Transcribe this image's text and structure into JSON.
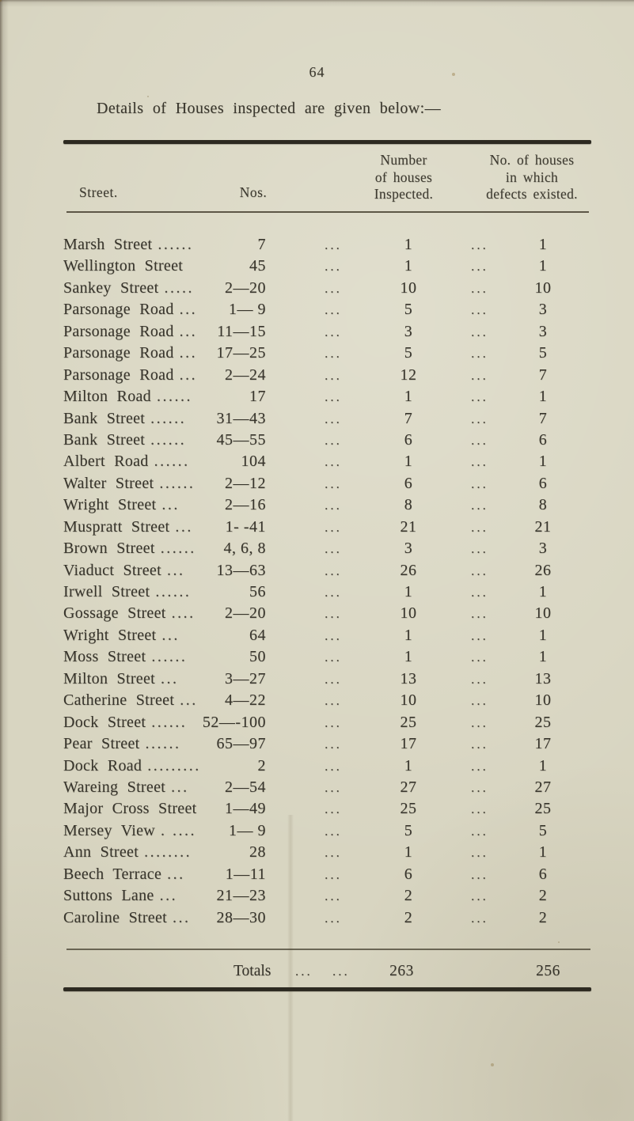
{
  "page": {
    "number": "64",
    "intro": "Details of Houses inspected are given below:—"
  },
  "table": {
    "headers": {
      "street": "Street.",
      "nos": "Nos.",
      "inspected_lines": [
        "Number",
        "of houses",
        "Inspected."
      ],
      "defects_lines": [
        "No. of houses",
        "in which",
        "defects existed."
      ]
    },
    "sep": "...",
    "rows": [
      {
        "street": "Marsh Street",
        "leader": "......",
        "nos": "7",
        "inspected": "1",
        "defects": "1"
      },
      {
        "street": "Wellington Street",
        "leader": "",
        "nos": "45",
        "inspected": "1",
        "defects": "1"
      },
      {
        "street": "Sankey Street",
        "leader": ".....",
        "nos": "2—20",
        "inspected": "10",
        "defects": "10"
      },
      {
        "street": "Parsonage Road",
        "leader": "...",
        "nos": "1— 9",
        "inspected": "5",
        "defects": "3"
      },
      {
        "street": "Parsonage Road",
        "leader": "...",
        "nos": "11—15",
        "inspected": "3",
        "defects": "3"
      },
      {
        "street": "Parsonage Road",
        "leader": "...",
        "nos": "17—25",
        "inspected": "5",
        "defects": "5"
      },
      {
        "street": "Parsonage Road",
        "leader": "...",
        "nos": "2—24",
        "inspected": "12",
        "defects": "7"
      },
      {
        "street": "Milton Road",
        "leader": "......",
        "nos": "17",
        "inspected": "1",
        "defects": "1"
      },
      {
        "street": "Bank Street",
        "leader": "......",
        "nos": "31—43",
        "inspected": "7",
        "defects": "7"
      },
      {
        "street": "Bank Street",
        "leader": "......",
        "nos": "45—55",
        "inspected": "6",
        "defects": "6"
      },
      {
        "street": "Albert Road",
        "leader": "......",
        "nos": "104",
        "inspected": "1",
        "defects": "1"
      },
      {
        "street": "Walter Street",
        "leader": "......",
        "nos": "2—12",
        "inspected": "6",
        "defects": "6"
      },
      {
        "street": "Wright Street",
        "leader": "...",
        "nos": "2—16",
        "inspected": "8",
        "defects": "8"
      },
      {
        "street": "Muspratt Street",
        "leader": "...",
        "nos": "1- -41",
        "inspected": "21",
        "defects": "21"
      },
      {
        "street": "Brown Street",
        "leader": "......",
        "nos": "4, 6, 8",
        "inspected": "3",
        "defects": "3"
      },
      {
        "street": "Viaduct Street",
        "leader": "...",
        "nos": "13—63",
        "inspected": "26",
        "defects": "26"
      },
      {
        "street": "Irwell Street",
        "leader": "......",
        "nos": "56",
        "inspected": "1",
        "defects": "1"
      },
      {
        "street": "Gossage Street",
        "leader": "....",
        "nos": "2—20",
        "inspected": "10",
        "defects": "10"
      },
      {
        "street": "Wright Street",
        "leader": "...",
        "nos": "64",
        "inspected": "1",
        "defects": "1"
      },
      {
        "street": "Moss Street",
        "leader": "......",
        "nos": "50",
        "inspected": "1",
        "defects": "1"
      },
      {
        "street": "Milton Street",
        "leader": "...",
        "nos": "3—27",
        "inspected": "13",
        "defects": "13"
      },
      {
        "street": "Catherine Street",
        "leader": "...",
        "nos": "4—22",
        "inspected": "10",
        "defects": "10"
      },
      {
        "street": "Dock Street",
        "leader": "......",
        "nos": "52—-100",
        "inspected": "25",
        "defects": "25"
      },
      {
        "street": "Pear Street",
        "leader": "......",
        "nos": "65—97",
        "inspected": "17",
        "defects": "17"
      },
      {
        "street": "Dock Road",
        "leader": ".........",
        "nos": "2",
        "inspected": "1",
        "defects": "1"
      },
      {
        "street": "Wareing Street",
        "leader": "...",
        "nos": "2—54",
        "inspected": "27",
        "defects": "27"
      },
      {
        "street": "Major Cross Street",
        "leader": "",
        "nos": "1—49",
        "inspected": "25",
        "defects": "25"
      },
      {
        "street": "Mersey View",
        "leader": ". ....",
        "nos": "1— 9",
        "inspected": "5",
        "defects": "5"
      },
      {
        "street": "Ann Street",
        "leader": "........",
        "nos": "28",
        "inspected": "1",
        "defects": "1"
      },
      {
        "street": "Beech Terrace",
        "leader": "...",
        "nos": "1—11",
        "inspected": "6",
        "defects": "6"
      },
      {
        "street": "Suttons Lane",
        "leader": "...",
        "nos": "21—23",
        "inspected": "2",
        "defects": "2"
      },
      {
        "street": "Caroline Street",
        "leader": "...",
        "nos": "28—30",
        "inspected": "2",
        "defects": "2"
      }
    ],
    "totals": {
      "label": "Totals",
      "dots1": "...",
      "dots2": "...",
      "inspected": "263",
      "defects": "256"
    }
  }
}
